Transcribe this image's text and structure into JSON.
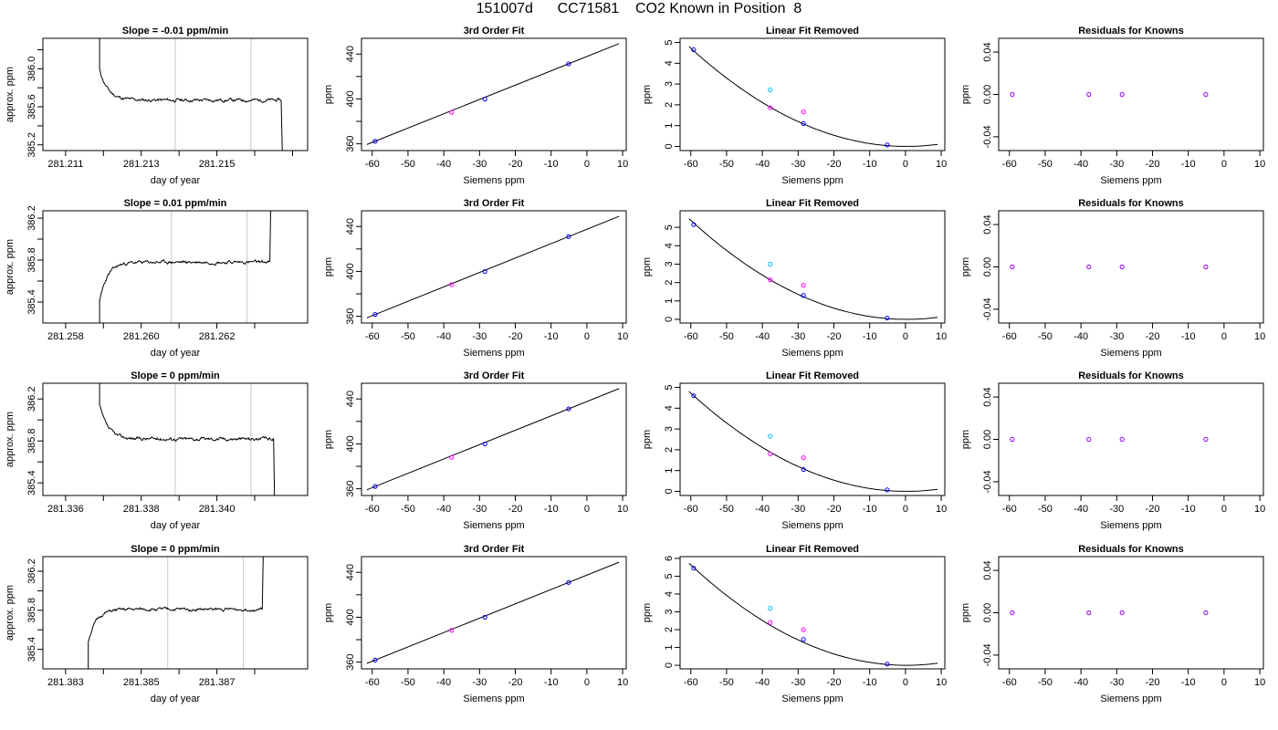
{
  "title": "151007d      CC71581    CO2 Known in Position  8",
  "colors": {
    "trace": "#000000",
    "vline": "#c8c8c8",
    "blue": "#0000ff",
    "magenta": "#ff00ff",
    "cyan": "#00bfff",
    "purple": "#9900ff"
  },
  "chart_data": [
    {
      "row": 0,
      "col": 0,
      "type": "line",
      "title": "Slope =  -0.01  ppm/min",
      "xlabel": "day of year",
      "ylabel": "approx. ppm",
      "xlim": [
        281.2104,
        281.2174
      ],
      "ylim": [
        385.14,
        386.32
      ],
      "xticks": [
        281.211,
        281.212,
        281.213,
        281.214,
        281.215,
        281.216,
        281.217
      ],
      "xtick_labels": [
        "281.211",
        "",
        "281.213",
        "",
        "281.215",
        "",
        ""
      ],
      "yticks": [
        385.2,
        385.4,
        385.6,
        385.8,
        386.0,
        386.2
      ],
      "ytick_labels": [
        "385.2",
        "",
        "385.6",
        "",
        "386.0",
        ""
      ],
      "vlines": [
        281.2139,
        281.2159
      ],
      "trace": {
        "x0": 281.2119,
        "x1": 281.2167,
        "level": 385.67,
        "spike_start": 386.4,
        "spike_end": 385.0,
        "rise": 0.32,
        "noise": 0.018,
        "seed": 11
      }
    },
    {
      "row": 0,
      "col": 1,
      "type": "scatter",
      "title": "3rd Order Fit",
      "xlabel": "Siemens ppm",
      "ylabel": "ppm",
      "xlim": [
        -63,
        11
      ],
      "ylim": [
        354,
        454
      ],
      "xticks": [
        -60,
        -50,
        -40,
        -30,
        -20,
        -10,
        0,
        10
      ],
      "yticks": [
        360,
        380,
        400,
        420,
        440
      ],
      "ytick_labels": [
        "360",
        "",
        "400",
        "",
        "440"
      ],
      "curve": {
        "type": "linear",
        "a": 366.0,
        "b": 0.0
      },
      "points": [
        {
          "x": -59.2,
          "y": 362.3,
          "color": "blue"
        },
        {
          "x": -37.8,
          "y": 388.0,
          "color": "magenta"
        },
        {
          "x": -28.5,
          "y": 399.8,
          "color": "blue"
        },
        {
          "x": -5.1,
          "y": 431.3,
          "color": "blue"
        }
      ]
    },
    {
      "row": 0,
      "col": 2,
      "type": "scatter",
      "title": "Linear Fit Removed",
      "xlabel": "Siemens ppm",
      "ylabel": "ppm",
      "xlim": [
        -63,
        11
      ],
      "ylim": [
        -0.2,
        5.2
      ],
      "xticks": [
        -60,
        -50,
        -40,
        -30,
        -20,
        -10,
        0,
        10
      ],
      "yticks": [
        0,
        1,
        2,
        3,
        4,
        5
      ],
      "curve": {
        "type": "quad",
        "vertex": 0.3,
        "k": 0.0013,
        "from": -60.5,
        "to": 9
      },
      "points": [
        {
          "x": -59.2,
          "y": 4.65,
          "color": "blue"
        },
        {
          "x": -37.8,
          "y": 2.72,
          "color": "cyan"
        },
        {
          "x": -37.8,
          "y": 1.86,
          "color": "magenta"
        },
        {
          "x": -28.5,
          "y": 1.66,
          "color": "magenta"
        },
        {
          "x": -28.5,
          "y": 1.1,
          "color": "blue"
        },
        {
          "x": -5.1,
          "y": 0.07,
          "color": "blue"
        }
      ]
    },
    {
      "row": 0,
      "col": 3,
      "type": "scatter",
      "title": "Residuals for Knowns",
      "xlabel": "Siemens ppm",
      "ylabel": "ppm",
      "xlim": [
        -63,
        11
      ],
      "ylim": [
        -0.053,
        0.053
      ],
      "xticks": [
        -60,
        -50,
        -40,
        -30,
        -20,
        -10,
        0,
        10
      ],
      "yticks": [
        -0.04,
        0.0,
        0.04
      ],
      "ytick_labels": [
        "-0.04",
        "0.00",
        "0.04"
      ],
      "points": [
        {
          "x": -59.2,
          "y": 0,
          "color": "purple"
        },
        {
          "x": -37.8,
          "y": 0,
          "color": "purple"
        },
        {
          "x": -28.5,
          "y": 0,
          "color": "purple"
        },
        {
          "x": -5.1,
          "y": 0,
          "color": "purple"
        }
      ]
    },
    {
      "row": 1,
      "col": 0,
      "type": "line",
      "title": "Slope =  0.01  ppm/min",
      "xlabel": "day of year",
      "ylabel": "approx. ppm",
      "xlim": [
        281.2574,
        281.2644
      ],
      "ylim": [
        385.2,
        386.27
      ],
      "xticks": [
        281.258,
        281.259,
        281.26,
        281.261,
        281.262,
        281.263
      ],
      "xtick_labels": [
        "281.258",
        "",
        "281.260",
        "",
        "281.262",
        ""
      ],
      "yticks": [
        385.4,
        385.6,
        385.8,
        386.0,
        386.2
      ],
      "ytick_labels": [
        "385.4",
        "",
        "385.8",
        "",
        "386.2"
      ],
      "vlines": [
        281.2608,
        281.2628
      ],
      "trace": {
        "x0": 281.2589,
        "x1": 281.2634,
        "level": 385.78,
        "spike_start": 385.0,
        "spike_end": 386.6,
        "rise": -0.38,
        "noise": 0.016,
        "seed": 23
      }
    },
    {
      "row": 1,
      "col": 1,
      "type": "scatter",
      "title": "3rd Order Fit",
      "xlabel": "Siemens ppm",
      "ylabel": "ppm",
      "xlim": [
        -63,
        11
      ],
      "ylim": [
        354,
        454
      ],
      "xticks": [
        -60,
        -50,
        -40,
        -30,
        -20,
        -10,
        0,
        10
      ],
      "yticks": [
        360,
        380,
        400,
        420,
        440
      ],
      "ytick_labels": [
        "360",
        "",
        "400",
        "",
        "440"
      ],
      "curve": {
        "type": "linear",
        "a": 366.0,
        "b": 0.0
      },
      "points": [
        {
          "x": -59.2,
          "y": 361.6,
          "color": "blue"
        },
        {
          "x": -37.8,
          "y": 388.2,
          "color": "magenta"
        },
        {
          "x": -28.5,
          "y": 399.9,
          "color": "blue"
        },
        {
          "x": -5.1,
          "y": 431.0,
          "color": "blue"
        }
      ]
    },
    {
      "row": 1,
      "col": 2,
      "type": "scatter",
      "title": "Linear Fit Removed",
      "xlabel": "Siemens ppm",
      "ylabel": "ppm",
      "xlim": [
        -63,
        11
      ],
      "ylim": [
        -0.2,
        5.9
      ],
      "xticks": [
        -60,
        -50,
        -40,
        -30,
        -20,
        -10,
        0,
        10
      ],
      "yticks": [
        0,
        1,
        2,
        3,
        4,
        5
      ],
      "curve": {
        "type": "quad",
        "vertex": 0.3,
        "k": 0.00148,
        "from": -60.5,
        "to": 9
      },
      "points": [
        {
          "x": -59.2,
          "y": 5.15,
          "color": "blue"
        },
        {
          "x": -37.8,
          "y": 3.0,
          "color": "cyan"
        },
        {
          "x": -37.8,
          "y": 2.15,
          "color": "magenta"
        },
        {
          "x": -28.5,
          "y": 1.85,
          "color": "magenta"
        },
        {
          "x": -28.5,
          "y": 1.3,
          "color": "blue"
        },
        {
          "x": -5.1,
          "y": 0.07,
          "color": "blue"
        }
      ]
    },
    {
      "row": 1,
      "col": 3,
      "type": "scatter",
      "title": "Residuals for Knowns",
      "xlabel": "Siemens ppm",
      "ylabel": "ppm",
      "xlim": [
        -63,
        11
      ],
      "ylim": [
        -0.053,
        0.053
      ],
      "xticks": [
        -60,
        -50,
        -40,
        -30,
        -20,
        -10,
        0,
        10
      ],
      "yticks": [
        -0.04,
        0.0,
        0.04
      ],
      "ytick_labels": [
        "-0.04",
        "0.00",
        "0.04"
      ],
      "points": [
        {
          "x": -59.2,
          "y": 0,
          "color": "purple"
        },
        {
          "x": -37.8,
          "y": 0,
          "color": "purple"
        },
        {
          "x": -28.5,
          "y": 0,
          "color": "purple"
        },
        {
          "x": -5.1,
          "y": 0,
          "color": "purple"
        }
      ]
    },
    {
      "row": 2,
      "col": 0,
      "type": "line",
      "title": "Slope =  0  ppm/min",
      "xlabel": "day of year",
      "ylabel": "approx. ppm",
      "xlim": [
        281.3354,
        281.3424
      ],
      "ylim": [
        385.28,
        386.35
      ],
      "xticks": [
        281.336,
        281.337,
        281.338,
        281.339,
        281.34,
        281.341
      ],
      "xtick_labels": [
        "281.336",
        "",
        "281.338",
        "",
        "281.340",
        ""
      ],
      "yticks": [
        385.4,
        385.6,
        385.8,
        386.0,
        386.2
      ],
      "ytick_labels": [
        "385.4",
        "",
        "385.8",
        "",
        "386.2"
      ],
      "vlines": [
        281.3389,
        281.3409
      ],
      "trace": {
        "x0": 281.3369,
        "x1": 281.3415,
        "level": 385.82,
        "spike_start": 386.6,
        "spike_end": 385.0,
        "rise": 0.32,
        "noise": 0.017,
        "seed": 37
      }
    },
    {
      "row": 2,
      "col": 1,
      "type": "scatter",
      "title": "3rd Order Fit",
      "xlabel": "Siemens ppm",
      "ylabel": "ppm",
      "xlim": [
        -63,
        11
      ],
      "ylim": [
        354,
        454
      ],
      "xticks": [
        -60,
        -50,
        -40,
        -30,
        -20,
        -10,
        0,
        10
      ],
      "yticks": [
        360,
        380,
        400,
        420,
        440
      ],
      "ytick_labels": [
        "360",
        "",
        "400",
        "",
        "440"
      ],
      "curve": {
        "type": "linear",
        "a": 366.0,
        "b": 0.0
      },
      "points": [
        {
          "x": -59.2,
          "y": 362.0,
          "color": "blue"
        },
        {
          "x": -37.8,
          "y": 388.0,
          "color": "magenta"
        },
        {
          "x": -28.5,
          "y": 399.9,
          "color": "blue"
        },
        {
          "x": -5.1,
          "y": 431.2,
          "color": "blue"
        }
      ]
    },
    {
      "row": 2,
      "col": 2,
      "type": "scatter",
      "title": "Linear Fit Removed",
      "xlabel": "Siemens ppm",
      "ylabel": "ppm",
      "xlim": [
        -63,
        11
      ],
      "ylim": [
        -0.2,
        5.2
      ],
      "xticks": [
        -60,
        -50,
        -40,
        -30,
        -20,
        -10,
        0,
        10
      ],
      "yticks": [
        0,
        1,
        2,
        3,
        4,
        5
      ],
      "curve": {
        "type": "quad",
        "vertex": 0.3,
        "k": 0.0013,
        "from": -60.5,
        "to": 9
      },
      "points": [
        {
          "x": -59.2,
          "y": 4.6,
          "color": "blue"
        },
        {
          "x": -37.8,
          "y": 2.65,
          "color": "cyan"
        },
        {
          "x": -37.8,
          "y": 1.8,
          "color": "magenta"
        },
        {
          "x": -28.5,
          "y": 1.62,
          "color": "magenta"
        },
        {
          "x": -28.5,
          "y": 1.05,
          "color": "blue"
        },
        {
          "x": -5.1,
          "y": 0.07,
          "color": "blue"
        }
      ]
    },
    {
      "row": 2,
      "col": 3,
      "type": "scatter",
      "title": "Residuals for Knowns",
      "xlabel": "Siemens ppm",
      "ylabel": "ppm",
      "xlim": [
        -63,
        11
      ],
      "ylim": [
        -0.053,
        0.053
      ],
      "xticks": [
        -60,
        -50,
        -40,
        -30,
        -20,
        -10,
        0,
        10
      ],
      "yticks": [
        -0.04,
        0.0,
        0.04
      ],
      "ytick_labels": [
        "-0.04",
        "0.00",
        "0.04"
      ],
      "points": [
        {
          "x": -59.2,
          "y": 0,
          "color": "purple"
        },
        {
          "x": -37.8,
          "y": 0,
          "color": "purple"
        },
        {
          "x": -28.5,
          "y": 0,
          "color": "purple"
        },
        {
          "x": -5.1,
          "y": 0,
          "color": "purple"
        }
      ]
    },
    {
      "row": 3,
      "col": 0,
      "type": "line",
      "title": "Slope =  0  ppm/min",
      "xlabel": "day of year",
      "ylabel": "approx. ppm",
      "xlim": [
        281.3824,
        281.3894
      ],
      "ylim": [
        385.2,
        386.35
      ],
      "xticks": [
        281.383,
        281.384,
        281.385,
        281.386,
        281.387,
        281.388
      ],
      "xtick_labels": [
        "281.383",
        "",
        "281.385",
        "",
        "281.387",
        ""
      ],
      "yticks": [
        385.4,
        385.6,
        385.8,
        386.0,
        386.2
      ],
      "ytick_labels": [
        "385.4",
        "",
        "385.8",
        "",
        "386.2"
      ],
      "vlines": [
        281.3857,
        281.3877
      ],
      "trace": {
        "x0": 281.3836,
        "x1": 281.3882,
        "level": 385.81,
        "spike_start": 385.0,
        "spike_end": 386.6,
        "rise": -0.33,
        "noise": 0.016,
        "seed": 51
      }
    },
    {
      "row": 3,
      "col": 1,
      "type": "scatter",
      "title": "3rd Order Fit",
      "xlabel": "Siemens ppm",
      "ylabel": "ppm",
      "xlim": [
        -63,
        11
      ],
      "ylim": [
        354,
        454
      ],
      "xticks": [
        -60,
        -50,
        -40,
        -30,
        -20,
        -10,
        0,
        10
      ],
      "yticks": [
        360,
        380,
        400,
        420,
        440
      ],
      "ytick_labels": [
        "360",
        "",
        "400",
        "",
        "440"
      ],
      "curve": {
        "type": "linear",
        "a": 366.0,
        "b": 0.0
      },
      "points": [
        {
          "x": -59.2,
          "y": 361.8,
          "color": "blue"
        },
        {
          "x": -37.8,
          "y": 388.3,
          "color": "magenta"
        },
        {
          "x": -28.5,
          "y": 400.0,
          "color": "blue"
        },
        {
          "x": -5.1,
          "y": 431.0,
          "color": "blue"
        }
      ]
    },
    {
      "row": 3,
      "col": 2,
      "type": "scatter",
      "title": "Linear Fit Removed",
      "xlabel": "Siemens ppm",
      "ylabel": "ppm",
      "xlim": [
        -63,
        11
      ],
      "ylim": [
        -0.2,
        6.1
      ],
      "xticks": [
        -60,
        -50,
        -40,
        -30,
        -20,
        -10,
        0,
        10
      ],
      "yticks": [
        0,
        1,
        2,
        3,
        4,
        5,
        6
      ],
      "curve": {
        "type": "quad",
        "vertex": 0.3,
        "k": 0.00155,
        "from": -60.5,
        "to": 9
      },
      "points": [
        {
          "x": -59.2,
          "y": 5.45,
          "color": "blue"
        },
        {
          "x": -37.8,
          "y": 3.2,
          "color": "cyan"
        },
        {
          "x": -37.8,
          "y": 2.4,
          "color": "magenta"
        },
        {
          "x": -28.5,
          "y": 2.0,
          "color": "magenta"
        },
        {
          "x": -28.5,
          "y": 1.45,
          "color": "blue"
        },
        {
          "x": -5.1,
          "y": 0.07,
          "color": "blue"
        }
      ]
    },
    {
      "row": 3,
      "col": 3,
      "type": "scatter",
      "title": "Residuals for Knowns",
      "xlabel": "Siemens ppm",
      "ylabel": "ppm",
      "xlim": [
        -63,
        11
      ],
      "ylim": [
        -0.053,
        0.053
      ],
      "xticks": [
        -60,
        -50,
        -40,
        -30,
        -20,
        -10,
        0,
        10
      ],
      "yticks": [
        -0.04,
        0.0,
        0.04
      ],
      "ytick_labels": [
        "-0.04",
        "0.00",
        "0.04"
      ],
      "points": [
        {
          "x": -59.2,
          "y": 0,
          "color": "purple"
        },
        {
          "x": -37.8,
          "y": 0,
          "color": "purple"
        },
        {
          "x": -28.5,
          "y": 0,
          "color": "purple"
        },
        {
          "x": -5.1,
          "y": 0,
          "color": "purple"
        }
      ]
    }
  ]
}
